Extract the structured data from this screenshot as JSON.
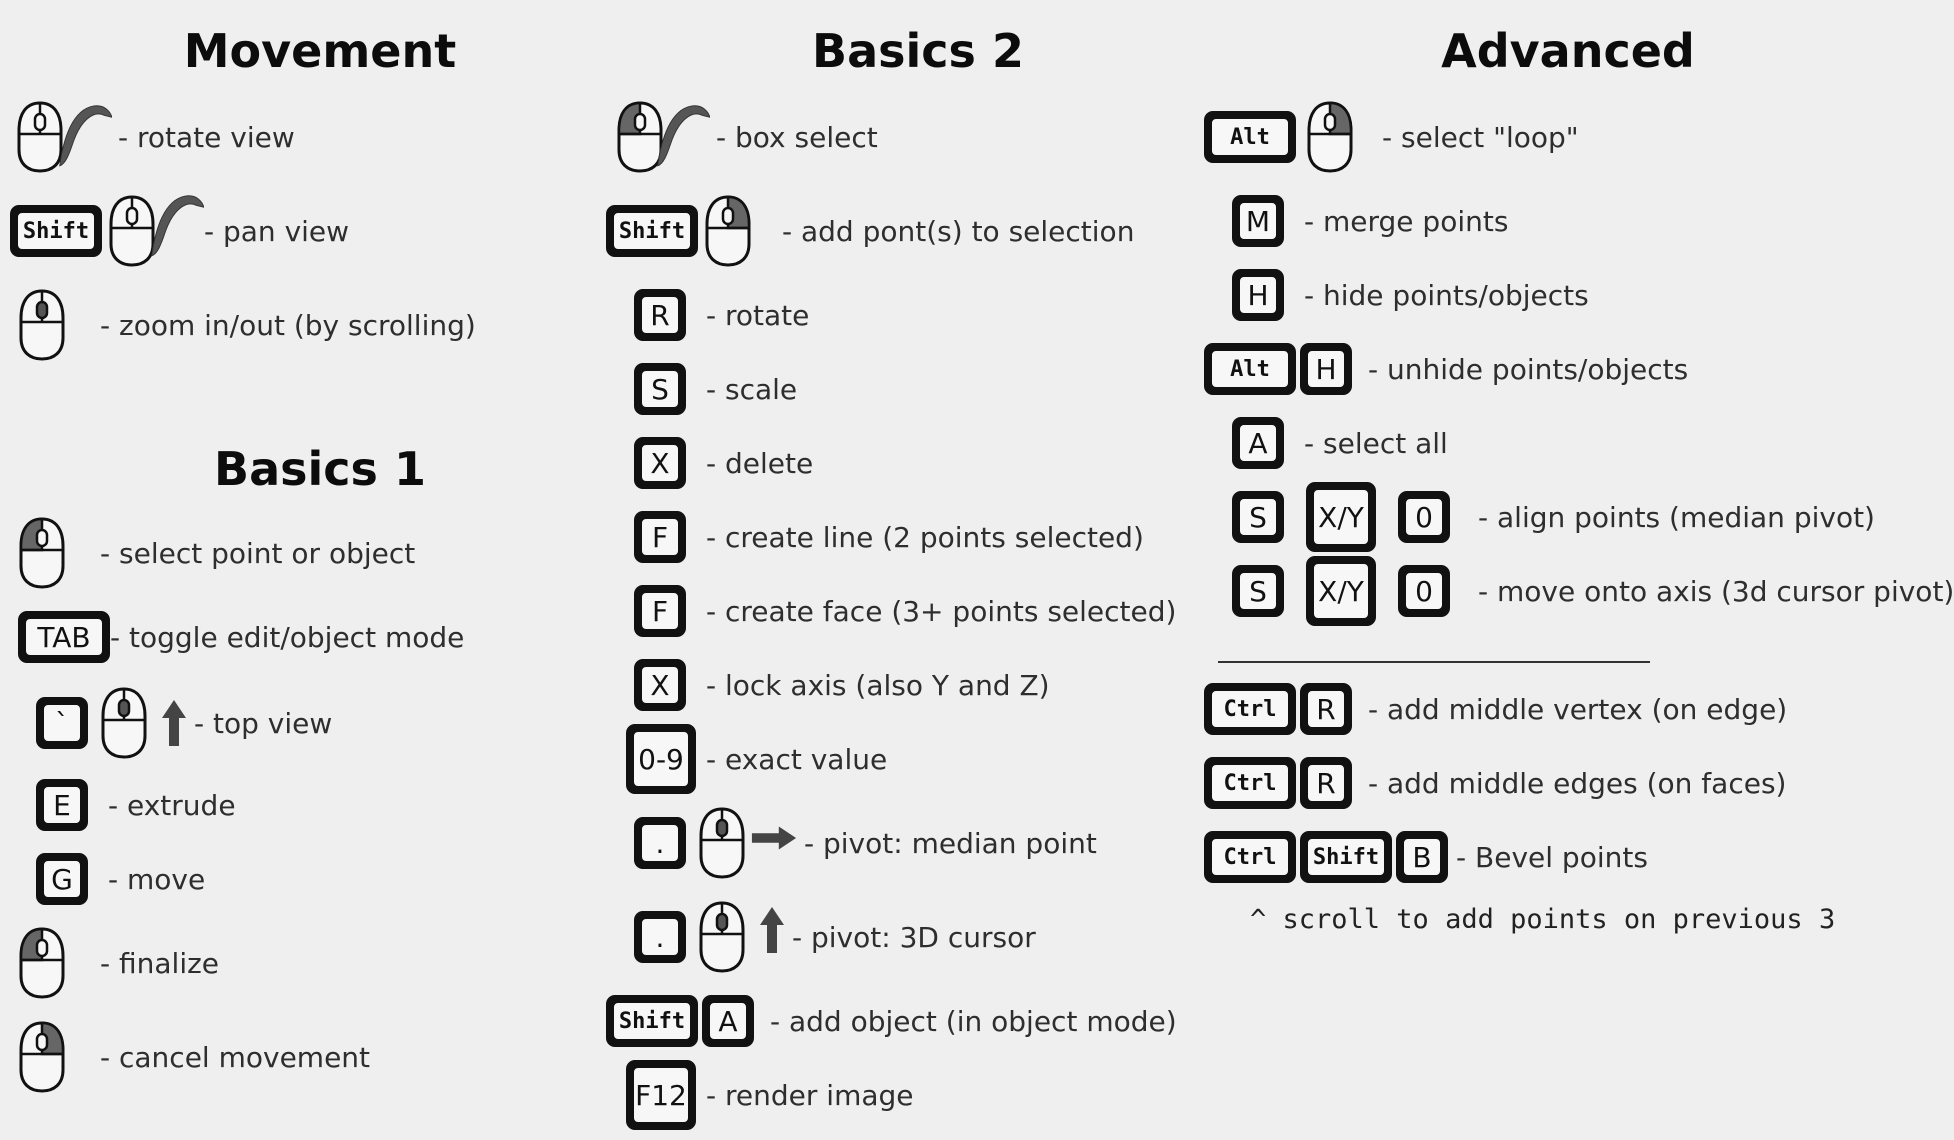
{
  "columns": {
    "movement": {
      "title": "Movement",
      "items": [
        {
          "text": "- rotate view"
        },
        {
          "key": "Shift",
          "text": "- pan view"
        },
        {
          "text": "- zoom in/out (by scrolling)"
        }
      ]
    },
    "basics1": {
      "title": "Basics 1",
      "items": [
        {
          "text": "- select point or object"
        },
        {
          "key": "TAB",
          "text": "- toggle edit/object mode"
        },
        {
          "key": "`",
          "text": "- top view"
        },
        {
          "key": "E",
          "text": "- extrude"
        },
        {
          "key": "G",
          "text": "- move"
        },
        {
          "text": "- finalize"
        },
        {
          "text": "- cancel movement"
        }
      ]
    },
    "basics2": {
      "title": "Basics 2",
      "items": [
        {
          "text": "- box select"
        },
        {
          "key": "Shift",
          "text": "- add pont(s) to selection"
        },
        {
          "key": "R",
          "text": "- rotate"
        },
        {
          "key": "S",
          "text": "- scale"
        },
        {
          "key": "X",
          "text": "- delete"
        },
        {
          "key": "F",
          "text": "- create line (2 points selected)"
        },
        {
          "key": "F",
          "text": "- create face (3+ points selected)"
        },
        {
          "key": "X",
          "text": "- lock axis (also Y and Z)"
        },
        {
          "key": "0-9",
          "text": "- exact value"
        },
        {
          "key": ".",
          "text": "- pivot: median point"
        },
        {
          "key": ".",
          "text": "- pivot: 3D cursor"
        },
        {
          "keys": [
            "Shift",
            "A"
          ],
          "text": "- add object (in object mode)"
        },
        {
          "key": "F12",
          "text": "- render image"
        }
      ]
    },
    "advanced": {
      "title": "Advanced",
      "items": [
        {
          "key": "Alt",
          "text": "- select \"loop\""
        },
        {
          "key": "M",
          "text": "- merge points"
        },
        {
          "key": "H",
          "text": "- hide points/objects"
        },
        {
          "keys": [
            "Alt",
            "H"
          ],
          "text": "- unhide points/objects"
        },
        {
          "key": "A",
          "text": "- select all"
        },
        {
          "keys": [
            "S",
            "X/Y",
            "0"
          ],
          "text": "- align points (median pivot)"
        },
        {
          "keys": [
            "S",
            "X/Y",
            "0"
          ],
          "text": "- move onto axis (3d cursor pivot)"
        },
        {
          "keys": [
            "Ctrl",
            "R"
          ],
          "text": "- add middle vertex (on edge)"
        },
        {
          "keys": [
            "Ctrl",
            "R"
          ],
          "text": "- add middle edges (on faces)"
        },
        {
          "keys": [
            "Ctrl",
            "Shift",
            "B"
          ],
          "text": "- Bevel points"
        }
      ],
      "note": "^ scroll to add points on previous 3"
    }
  },
  "icons": {
    "mouse": "mouse-icon",
    "arrow_up": "arrow-up-icon",
    "arrow_right": "arrow-right-icon",
    "drag_arc": "drag-arc-icon"
  },
  "colors": {
    "background": "#efefef",
    "key_border": "#111111",
    "key_face": "#f7f7f7",
    "highlight": "#555555"
  }
}
